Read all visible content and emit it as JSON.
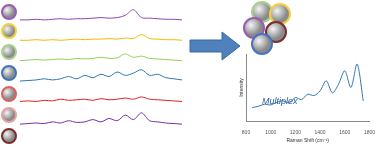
{
  "chart_data": [
    {
      "type": "line",
      "tick_labels": false,
      "grid": false,
      "x": [
        0,
        5,
        10,
        15,
        20,
        25,
        30,
        35,
        40,
        45,
        50,
        55,
        60,
        65,
        70,
        75,
        80,
        85,
        90,
        95,
        100
      ],
      "xlim": [
        0,
        100
      ],
      "ylim": [
        0,
        120
      ],
      "series": [
        {
          "color": "#8e44ad",
          "values": [
            106,
            106,
            106.5,
            106,
            106.5,
            107,
            106.5,
            107,
            107,
            107.5,
            108,
            107.5,
            108,
            110,
            115,
            108,
            107.5,
            107,
            106.5,
            106.5,
            106
          ]
        },
        {
          "color": "#f5b800",
          "values": [
            88,
            88,
            88.5,
            88,
            88.5,
            88,
            88.5,
            89,
            88.5,
            89,
            89,
            89.5,
            89,
            90,
            89.5,
            93,
            89.5,
            89,
            88.5,
            88.5,
            88
          ]
        },
        {
          "color": "#92d050",
          "values": [
            70,
            70.5,
            71,
            70.5,
            71,
            71.5,
            71,
            72,
            71.5,
            72,
            73,
            72,
            72.5,
            76,
            73,
            74,
            72,
            71.5,
            71,
            70.5,
            70
          ]
        },
        {
          "color": "#2e75b6",
          "values": [
            52,
            52.5,
            53,
            54,
            53,
            54,
            56,
            54,
            57,
            55,
            58,
            56,
            60,
            57,
            59,
            62,
            57,
            58,
            55,
            54,
            53
          ]
        },
        {
          "color": "#e02020",
          "values": [
            34,
            34.5,
            34,
            35,
            34.5,
            36,
            35,
            35.5,
            36,
            35,
            36.5,
            35.5,
            36,
            37,
            36,
            38,
            36,
            35.5,
            35,
            34.5,
            34
          ]
        },
        {
          "color": "#7030a0",
          "values": [
            14,
            14.5,
            15,
            14.5,
            16,
            15,
            17,
            15.5,
            16,
            18,
            16,
            19,
            17,
            22,
            18,
            24,
            17,
            16,
            15,
            14.5,
            14
          ]
        }
      ]
    },
    {
      "type": "line",
      "tick_labels": "x",
      "grid": false,
      "x_label": "Raman Shift (cm⁻¹)",
      "y_label": "Intensity",
      "annotations": [
        "Multiplex"
      ],
      "x": [
        850,
        900,
        950,
        1000,
        1050,
        1100,
        1150,
        1200,
        1250,
        1300,
        1350,
        1400,
        1450,
        1500,
        1550,
        1600,
        1650,
        1700,
        1750
      ],
      "xlim": [
        800,
        1800
      ],
      "xticks": [
        800,
        1000,
        1200,
        1400,
        1600,
        1800
      ],
      "ylim": [
        0,
        100
      ],
      "series": [
        {
          "color": "#2e75b6",
          "values": [
            20,
            22,
            25,
            24,
            28,
            30,
            27,
            35,
            32,
            40,
            38,
            45,
            60,
            42,
            55,
            75,
            50,
            85,
            30
          ]
        }
      ]
    }
  ]
}
